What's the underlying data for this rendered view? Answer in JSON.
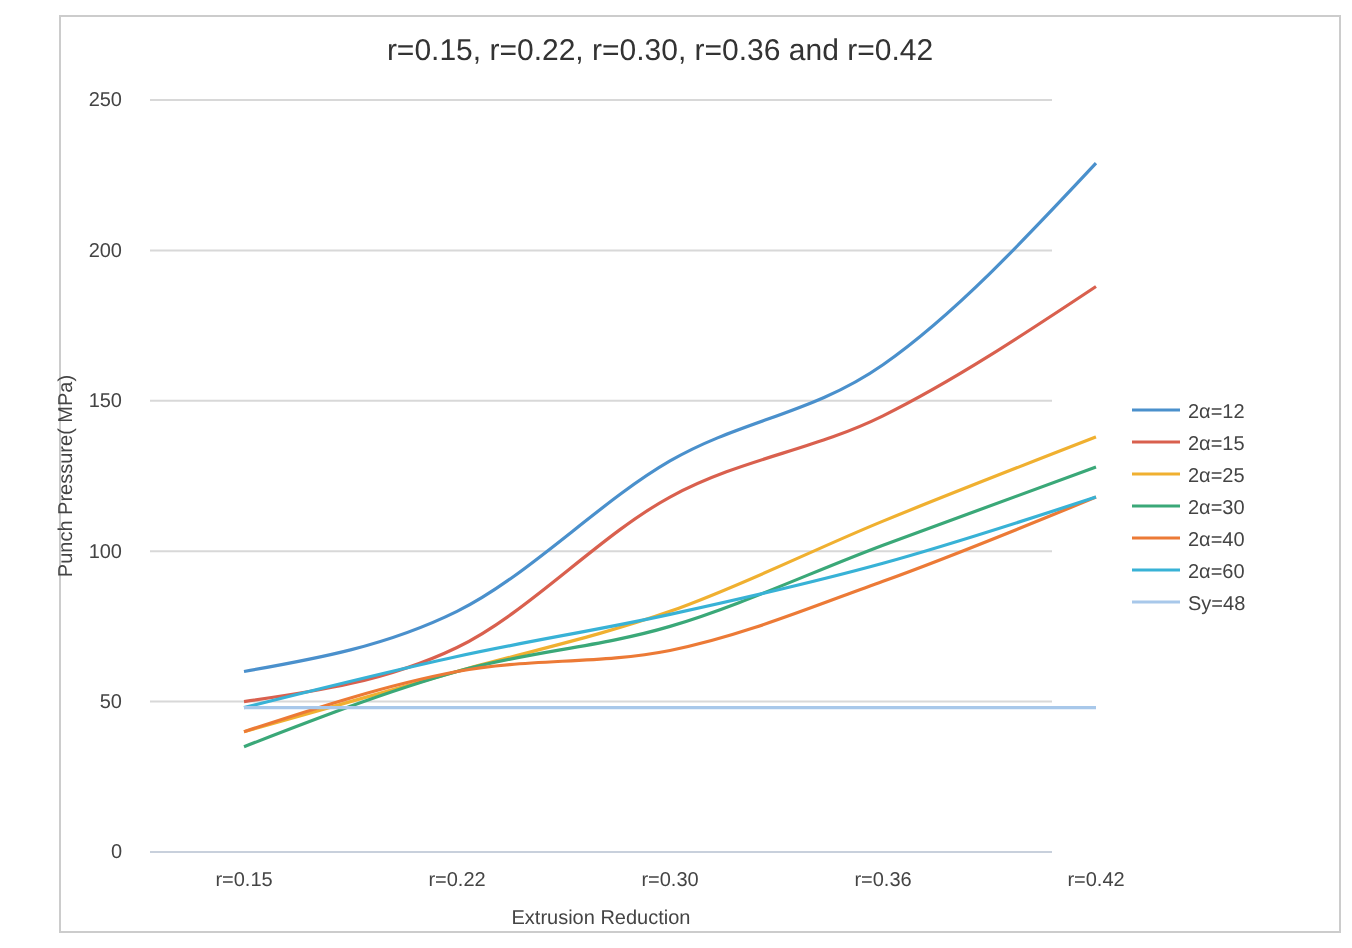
{
  "chart_data": {
    "type": "line",
    "title": "r=0.15, r=0.22, r=0.30, r=0.36 and r=0.42",
    "xlabel": "Extrusion Reduction",
    "ylabel": "Punch Pressure( MPa)",
    "categories": [
      "r=0.15",
      "r=0.22",
      "r=0.30",
      "r=0.36",
      "r=0.42"
    ],
    "ylim": [
      0,
      250
    ],
    "yticks": [
      0,
      50,
      100,
      150,
      200,
      250
    ],
    "grid": "y",
    "legend": "right",
    "marker": "none",
    "line_style": "solid",
    "series": [
      {
        "name": "2α=12",
        "color": "#4a90cc",
        "values": [
          60,
          80,
          130,
          162,
          229
        ]
      },
      {
        "name": "2α=15",
        "color": "#d9604e",
        "values": [
          50,
          68,
          118,
          145,
          188
        ]
      },
      {
        "name": "2α=25",
        "color": "#f0b030",
        "values": [
          40,
          60,
          80,
          110,
          138
        ]
      },
      {
        "name": "2α=30",
        "color": "#3aa878",
        "values": [
          35,
          60,
          75,
          102,
          128
        ]
      },
      {
        "name": "2α=40",
        "color": "#ec7a36",
        "values": [
          40,
          60,
          67,
          90,
          118
        ]
      },
      {
        "name": "2α=60",
        "color": "#38b2d6",
        "values": [
          48,
          65,
          79,
          96,
          118
        ]
      },
      {
        "name": "Sy=48",
        "color": "#a8c8ea",
        "values": [
          48,
          48,
          48,
          48,
          48
        ]
      }
    ]
  }
}
